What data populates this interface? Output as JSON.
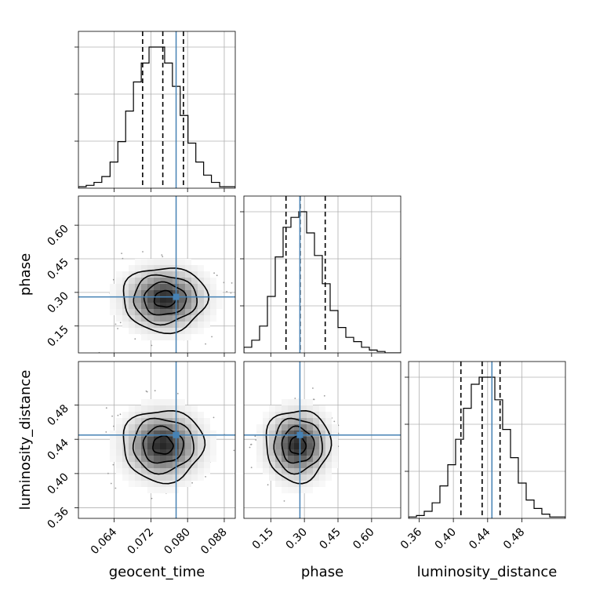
{
  "chart_data": {
    "type": "corner",
    "parameters": [
      "geocent_time",
      "phase",
      "luminosity_distance"
    ],
    "truths": {
      "geocent_time": 0.0775,
      "phase": 0.28,
      "luminosity_distance": 0.445
    },
    "colors": {
      "truth": "#4682b4",
      "histogram": "#000000",
      "grid": "#b0b0b0"
    },
    "grid": true,
    "ranges": {
      "geocent_time": [
        0.0562,
        0.0904
      ],
      "phase": [
        0.03,
        0.73
      ],
      "luminosity_distance": [
        0.3477,
        0.5308
      ]
    },
    "ticks": {
      "geocent_time": {
        "values": [
          0.064,
          0.072,
          0.08,
          0.088
        ],
        "labels": [
          "0.064",
          "0.072",
          "0.080",
          "0.088"
        ]
      },
      "phase": {
        "values": [
          0.15,
          0.3,
          0.45,
          0.6
        ],
        "labels": [
          "0.15",
          "0.30",
          "0.45",
          "0.60"
        ]
      },
      "luminosity_distance": {
        "values": [
          0.36,
          0.4,
          0.44,
          0.48
        ],
        "labels": [
          "0.36",
          "0.40",
          "0.44",
          "0.48"
        ]
      }
    },
    "marginals": [
      {
        "parameter": "geocent_time",
        "bin_edges": [
          0.0562,
          0.0579,
          0.0596,
          0.0613,
          0.0631,
          0.0648,
          0.0665,
          0.0682,
          0.0699,
          0.0716,
          0.0733,
          0.075,
          0.0767,
          0.0784,
          0.0801,
          0.0818,
          0.0835,
          0.0852,
          0.087,
          0.0887,
          0.0904
        ],
        "counts": [
          1,
          2,
          4,
          8,
          18,
          32,
          53,
          73,
          86,
          97,
          97,
          86,
          70,
          50,
          31,
          18,
          9,
          4,
          1,
          1
        ],
        "quantiles": [
          0.0702,
          0.0746,
          0.0791
        ]
      },
      {
        "parameter": "phase",
        "bin_edges": [
          0.03,
          0.065,
          0.1,
          0.135,
          0.17,
          0.205,
          0.24,
          0.275,
          0.31,
          0.345,
          0.38,
          0.415,
          0.45,
          0.485,
          0.52,
          0.555,
          0.59,
          0.625,
          0.66,
          0.695,
          0.73
        ],
        "counts": [
          4,
          9,
          19,
          40,
          68,
          89,
          96,
          100,
          85,
          69,
          49,
          30,
          18,
          11,
          8,
          4,
          2,
          1,
          0,
          0
        ],
        "quantiles": [
          0.218,
          0.281,
          0.393
        ]
      },
      {
        "parameter": "luminosity_distance",
        "bin_edges": [
          0.3477,
          0.3569,
          0.366,
          0.3752,
          0.3843,
          0.3935,
          0.4026,
          0.4118,
          0.4209,
          0.4301,
          0.4392,
          0.4484,
          0.4575,
          0.4667,
          0.4758,
          0.485,
          0.4942,
          0.5033,
          0.5125,
          0.5216,
          0.5308
        ],
        "counts": [
          1,
          2,
          5,
          11,
          23,
          38,
          56,
          78,
          95,
          100,
          100,
          84,
          63,
          43,
          25,
          13,
          7,
          3,
          1,
          1
        ],
        "quantiles": [
          0.4088,
          0.4336,
          0.4545
        ]
      }
    ],
    "pairs": [
      {
        "x": "geocent_time",
        "y": "phase",
        "mean": [
          0.075,
          0.27
        ],
        "sd": [
          0.0046,
          0.072
        ]
      },
      {
        "x": "geocent_time",
        "y": "luminosity_distance",
        "mean": [
          0.0746,
          0.433
        ],
        "sd": [
          0.0044,
          0.021
        ]
      },
      {
        "x": "phase",
        "y": "luminosity_distance",
        "mean": [
          0.27,
          0.433
        ],
        "sd": [
          0.072,
          0.021
        ]
      }
    ]
  }
}
